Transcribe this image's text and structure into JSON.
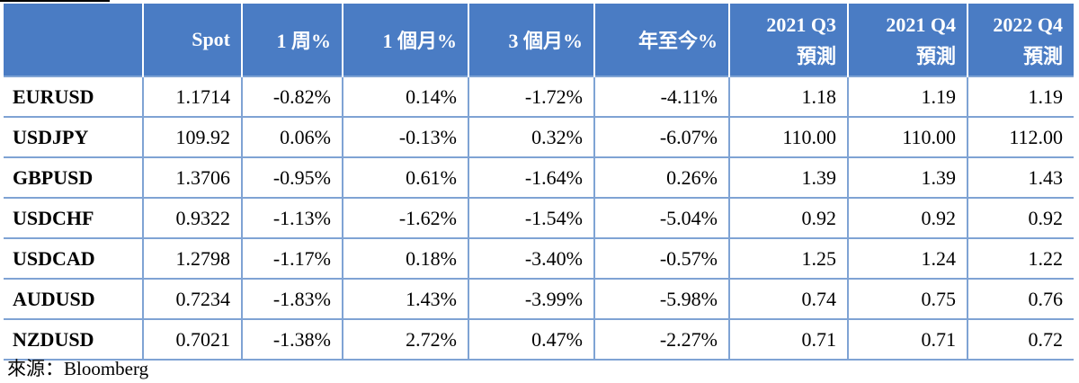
{
  "header": {
    "spot": "Spot",
    "w1": "1 周%",
    "m1": "1 個月%",
    "m3": "3 個月%",
    "ytd": "年至今%",
    "q3_2021": "2021 Q3",
    "q4_2021": "2021 Q4",
    "q4_2022": "2022 Q4",
    "forecast": "預測"
  },
  "rows": [
    {
      "pair": "EURUSD",
      "spot": "1.1714",
      "w1": "-0.82%",
      "m1": "0.14%",
      "m3": "-1.72%",
      "ytd": "-4.11%",
      "q3_2021": "1.18",
      "q4_2021": "1.19",
      "q4_2022": "1.19"
    },
    {
      "pair": "USDJPY",
      "spot": "109.92",
      "w1": "0.06%",
      "m1": "-0.13%",
      "m3": "0.32%",
      "ytd": "-6.07%",
      "q3_2021": "110.00",
      "q4_2021": "110.00",
      "q4_2022": "112.00"
    },
    {
      "pair": "GBPUSD",
      "spot": "1.3706",
      "w1": "-0.95%",
      "m1": "0.61%",
      "m3": "-1.64%",
      "ytd": "0.26%",
      "q3_2021": "1.39",
      "q4_2021": "1.39",
      "q4_2022": "1.43"
    },
    {
      "pair": "USDCHF",
      "spot": "0.9322",
      "w1": "-1.13%",
      "m1": "-1.62%",
      "m3": "-1.54%",
      "ytd": "-5.04%",
      "q3_2021": "0.92",
      "q4_2021": "0.92",
      "q4_2022": "0.92"
    },
    {
      "pair": "USDCAD",
      "spot": "1.2798",
      "w1": "-1.17%",
      "m1": "0.18%",
      "m3": "-3.40%",
      "ytd": "-0.57%",
      "q3_2021": "1.25",
      "q4_2021": "1.24",
      "q4_2022": "1.22"
    },
    {
      "pair": "AUDUSD",
      "spot": "0.7234",
      "w1": "-1.83%",
      "m1": "1.43%",
      "m3": "-3.99%",
      "ytd": "-5.98%",
      "q3_2021": "0.74",
      "q4_2021": "0.75",
      "q4_2022": "0.76"
    },
    {
      "pair": "NZDUSD",
      "spot": "0.7021",
      "w1": "-1.38%",
      "m1": "2.72%",
      "m3": "0.47%",
      "ytd": "-2.27%",
      "q3_2021": "0.71",
      "q4_2021": "0.71",
      "q4_2022": "0.72"
    }
  ],
  "source": "來源：Bloomberg",
  "colors": {
    "header_bg": "#4a7cc4",
    "grid_line": "#7fa3d4"
  }
}
